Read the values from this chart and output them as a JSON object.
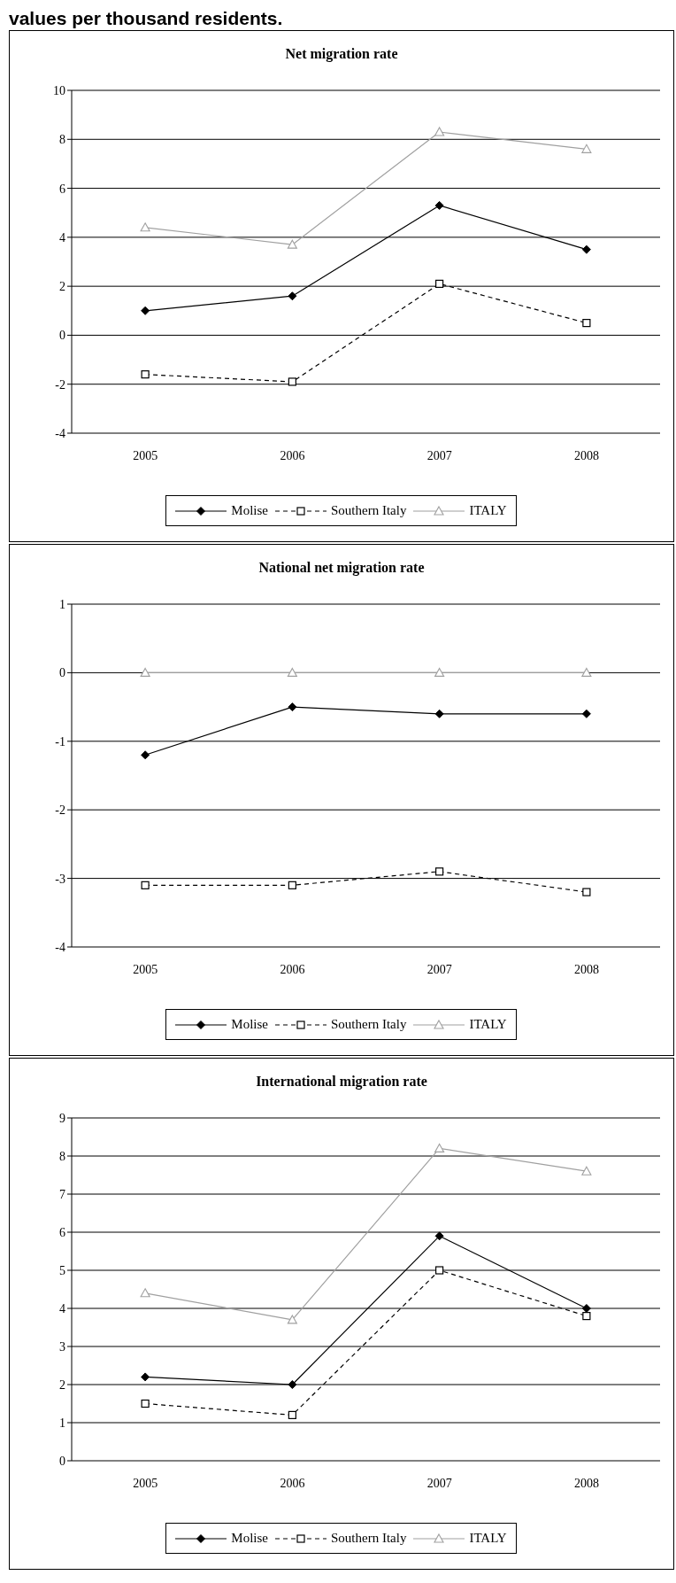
{
  "chart_data": [
    {
      "type": "line",
      "title": "Net migration rate",
      "annotations": [
        "values per thousand residents."
      ],
      "categories": [
        "2005",
        "2006",
        "2007",
        "2008"
      ],
      "series": [
        {
          "name": "Molise",
          "color": "#000000",
          "marker": "diamond",
          "line_style": "solid",
          "values": [
            1.0,
            1.6,
            5.3,
            3.5
          ]
        },
        {
          "name": "Southern Italy",
          "color": "#000000",
          "marker": "square",
          "line_style": "dashed",
          "values": [
            -1.6,
            -1.9,
            2.1,
            0.5
          ]
        },
        {
          "name": "ITALY",
          "color": "#a0a0a0",
          "marker": "triangle",
          "line_style": "solid",
          "values": [
            4.4,
            3.7,
            8.3,
            7.6
          ]
        }
      ],
      "ylim": [
        -4,
        10
      ],
      "yticks": [
        -4,
        -2,
        0,
        2,
        4,
        6,
        8,
        10
      ],
      "grid": "y",
      "legend": "bottom"
    },
    {
      "type": "line",
      "title": "National net migration rate",
      "categories": [
        "2005",
        "2006",
        "2007",
        "2008"
      ],
      "series": [
        {
          "name": "Molise",
          "color": "#000000",
          "marker": "diamond",
          "line_style": "solid",
          "values": [
            -1.2,
            -0.5,
            -0.6,
            -0.6
          ]
        },
        {
          "name": "Southern Italy",
          "color": "#000000",
          "marker": "square",
          "line_style": "dashed",
          "values": [
            -3.1,
            -3.1,
            -2.9,
            -3.2
          ]
        },
        {
          "name": "ITALY",
          "color": "#a0a0a0",
          "marker": "triangle",
          "line_style": "solid",
          "values": [
            0,
            0,
            0,
            0
          ]
        }
      ],
      "ylim": [
        -4,
        1
      ],
      "yticks": [
        -4,
        -3,
        -2,
        -1,
        0,
        1
      ],
      "grid": "y",
      "legend": "bottom"
    },
    {
      "type": "line",
      "title": "International migration rate",
      "categories": [
        "2005",
        "2006",
        "2007",
        "2008"
      ],
      "series": [
        {
          "name": "Molise",
          "color": "#000000",
          "marker": "diamond",
          "line_style": "solid",
          "values": [
            2.2,
            2.0,
            5.9,
            4.0
          ]
        },
        {
          "name": "Southern Italy",
          "color": "#000000",
          "marker": "square",
          "line_style": "dashed",
          "values": [
            1.5,
            1.2,
            5.0,
            3.8
          ]
        },
        {
          "name": "ITALY",
          "color": "#a0a0a0",
          "marker": "triangle",
          "line_style": "solid",
          "values": [
            4.4,
            3.7,
            8.2,
            7.6
          ]
        }
      ],
      "ylim": [
        0,
        9
      ],
      "yticks": [
        0,
        1,
        2,
        3,
        4,
        5,
        6,
        7,
        8,
        9
      ],
      "grid": "y",
      "legend": "bottom"
    }
  ]
}
